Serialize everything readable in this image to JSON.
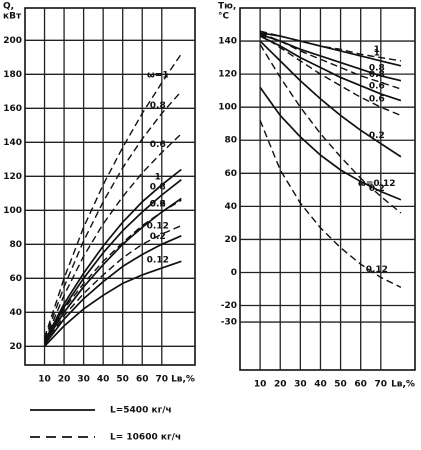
{
  "chart_data": [
    {
      "type": "line",
      "y_label": [
        "Q,",
        "кВт"
      ],
      "x_label": "Lв,%",
      "x": [
        10,
        20,
        30,
        40,
        50,
        60,
        70,
        80
      ],
      "xlim": [
        0,
        87
      ],
      "xticks": [
        10,
        20,
        30,
        40,
        50,
        60,
        70
      ],
      "ylim": [
        9,
        219
      ],
      "yticks": [
        20,
        40,
        60,
        80,
        100,
        120,
        140,
        160,
        180,
        200
      ],
      "grid": true,
      "color": "#111111",
      "series": [
        {
          "name": "ω=1",
          "dash": true,
          "values": [
            25,
            60,
            90,
            115,
            137,
            157,
            175,
            192
          ]
        },
        {
          "name": "0.8",
          "dash": true,
          "values": [
            24,
            55,
            82,
            105,
            125,
            142,
            157,
            170
          ]
        },
        {
          "name": "0.6",
          "dash": true,
          "values": [
            23,
            50,
            73,
            92,
            108,
            122,
            134,
            145
          ]
        },
        {
          "name": "0.2",
          "dash": true,
          "values": [
            22,
            42,
            57,
            70,
            81,
            91,
            99,
            106
          ]
        },
        {
          "name": "0.12",
          "dash": true,
          "values": [
            21,
            38,
            51,
            62,
            72,
            80,
            86,
            91
          ]
        },
        {
          "name": "1",
          "dash": false,
          "values": [
            23,
            45,
            63,
            79,
            93,
            105,
            115,
            124
          ]
        },
        {
          "name": "0.8",
          "dash": false,
          "values": [
            22,
            43,
            60,
            75,
            88,
            99,
            109,
            118
          ]
        },
        {
          "name": "0.6",
          "dash": false,
          "values": [
            22,
            40,
            55,
            68,
            80,
            90,
            99,
            107
          ]
        },
        {
          "name": "0.2",
          "dash": false,
          "values": [
            21,
            36,
            48,
            58,
            67,
            74,
            80,
            85
          ]
        },
        {
          "name": "0.12",
          "dash": false,
          "values": [
            20,
            32,
            42,
            50,
            57,
            62,
            66,
            70
          ]
        }
      ]
    },
    {
      "type": "line",
      "y_label": [
        "Tю,",
        "°C"
      ],
      "x_label": "Lв,%",
      "x": [
        10,
        20,
        30,
        40,
        50,
        60,
        70,
        80
      ],
      "xlim": [
        0,
        87
      ],
      "xticks": [
        10,
        20,
        30,
        40,
        50,
        60,
        70
      ],
      "ylim": [
        -59,
        160
      ],
      "yticks": [
        -30,
        -20,
        0,
        20,
        40,
        60,
        80,
        100,
        120,
        140
      ],
      "grid": true,
      "color": "#111111",
      "series": [
        {
          "name": "1",
          "dash": true,
          "values": [
            146,
            143,
            140,
            137,
            135,
            132,
            130,
            128
          ]
        },
        {
          "name": "0.8",
          "dash": true,
          "values": [
            145,
            140,
            134,
            129,
            124,
            119,
            115,
            111
          ]
        },
        {
          "name": "0.6",
          "dash": true,
          "values": [
            144,
            136,
            128,
            120,
            113,
            106,
            100,
            95
          ]
        },
        {
          "name": "0.2",
          "dash": true,
          "values": [
            138,
            118,
            100,
            84,
            70,
            57,
            46,
            36
          ]
        },
        {
          "name": "0.12",
          "dash": true,
          "values": [
            92,
            62,
            42,
            27,
            15,
            5,
            -3,
            -9
          ]
        },
        {
          "name": "1",
          "dash": false,
          "values": [
            145,
            143,
            140,
            137,
            134,
            131,
            128,
            125
          ]
        },
        {
          "name": "0.8",
          "dash": false,
          "values": [
            144,
            140,
            135,
            131,
            127,
            123,
            119,
            116
          ]
        },
        {
          "name": "0.6",
          "dash": false,
          "values": [
            143,
            137,
            130,
            124,
            118,
            113,
            108,
            104
          ]
        },
        {
          "name": "0.2",
          "dash": false,
          "values": [
            140,
            128,
            116,
            105,
            95,
            86,
            78,
            70
          ]
        },
        {
          "name": "ω=0.12",
          "dash": false,
          "values": [
            112,
            95,
            82,
            71,
            62,
            55,
            49,
            44
          ]
        }
      ]
    }
  ],
  "legend": [
    {
      "label": "L=5400 кг/ч",
      "dash": false
    },
    {
      "label": "L= 10600 кг/ч",
      "dash": true
    }
  ]
}
